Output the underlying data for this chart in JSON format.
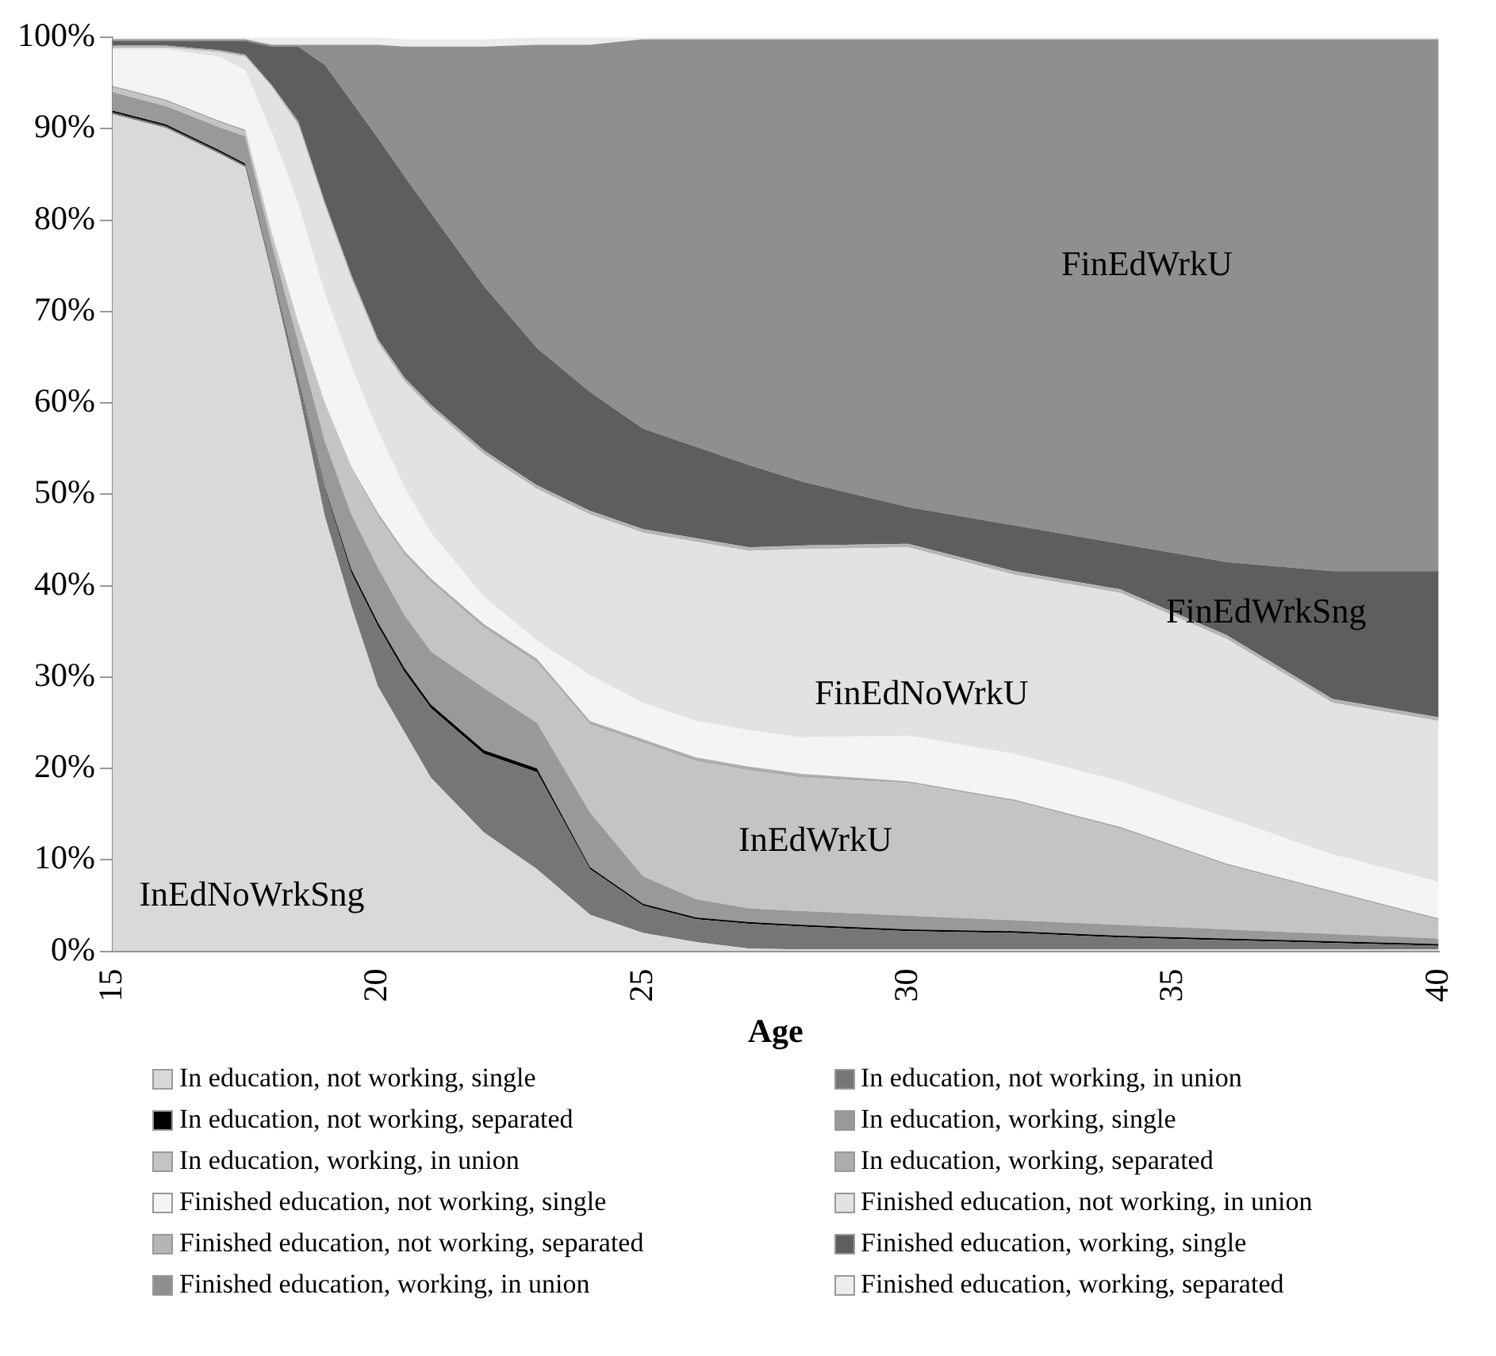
{
  "chart_data": {
    "type": "area",
    "stacked": true,
    "xlabel": "Age",
    "x": [
      15,
      16,
      17,
      17.5,
      18,
      18.5,
      19,
      19.5,
      20,
      20.5,
      21,
      22,
      23,
      24,
      25,
      26,
      27,
      28,
      30,
      32,
      34,
      36,
      38,
      40
    ],
    "xlim": [
      15,
      40
    ],
    "xticks": [
      15,
      20,
      25,
      30,
      35,
      40
    ],
    "ylim": [
      0,
      100
    ],
    "yticks": [
      {
        "value": 0,
        "label": "0%"
      },
      {
        "value": 10,
        "label": "10%"
      },
      {
        "value": 20,
        "label": "20%"
      },
      {
        "value": 30,
        "label": "30%"
      },
      {
        "value": 40,
        "label": "40%"
      },
      {
        "value": 50,
        "label": "50%"
      },
      {
        "value": 60,
        "label": "60%"
      },
      {
        "value": 70,
        "label": "70%"
      },
      {
        "value": 80,
        "label": "80%"
      },
      {
        "value": 90,
        "label": "90%"
      },
      {
        "value": 100,
        "label": "100%"
      }
    ],
    "grid": false,
    "legend": "bottom",
    "series": [
      {
        "name": "In education, not working, single",
        "color": "#d9d9d9",
        "values": [
          91.6,
          90.1,
          87.3,
          85.8,
          74,
          61.4,
          47.6,
          37.8,
          29,
          24,
          19,
          13,
          9,
          4,
          2,
          1,
          0.3,
          0.2,
          0.2,
          0.2,
          0.2,
          0.2,
          0.2,
          0.2
        ]
      },
      {
        "name": "In education, not working, in union",
        "color": "#767676",
        "values": [
          0.2,
          0.2,
          0.2,
          0.2,
          0.2,
          1,
          3,
          3.6,
          6.6,
          6.6,
          7.6,
          8.6,
          10.6,
          5,
          3,
          2.5,
          2.7,
          2.5,
          2,
          1.8,
          1.3,
          1,
          0.7,
          0.4
        ]
      },
      {
        "name": "In education, not working, separated",
        "color": "#000000",
        "values": [
          0.2,
          0.2,
          0.2,
          0.2,
          0.2,
          0.2,
          0.2,
          0.4,
          0.4,
          0.4,
          0.4,
          0.4,
          0.4,
          0.2,
          0.2,
          0.2,
          0.2,
          0.2,
          0.2,
          0.2,
          0.2,
          0.2,
          0.2,
          0.2
        ]
      },
      {
        "name": "In education, working, single",
        "color": "#999999",
        "values": [
          2,
          2,
          2.5,
          3,
          3,
          4,
          5,
          6,
          6,
          5.8,
          5.8,
          6.8,
          5,
          6,
          3,
          2,
          1.5,
          1.5,
          1.5,
          1.2,
          1.2,
          1,
          0.8,
          0.6
        ]
      },
      {
        "name": "In education, working, in union",
        "color": "#c4c4c4",
        "values": [
          0.5,
          0.5,
          0.5,
          0.5,
          1,
          2,
          4,
          5,
          5.6,
          6.6,
          7.6,
          6.6,
          6.6,
          9.6,
          14.6,
          15.1,
          15.1,
          14.6,
          14.5,
          13,
          10.5,
          7,
          4.5,
          2
        ]
      },
      {
        "name": "In education, working, separated",
        "color": "#adadad",
        "values": [
          0.2,
          0.2,
          0.2,
          0.2,
          0.2,
          0.2,
          0.2,
          0.2,
          0.4,
          0.4,
          0.4,
          0.4,
          0.4,
          0.4,
          0.4,
          0.4,
          0.4,
          0.4,
          0.2,
          0.2,
          0.2,
          0.2,
          0.2,
          0.2
        ]
      },
      {
        "name": "Finished education, not working, single",
        "color": "#f4f4f4",
        "values": [
          4,
          5.5,
          7,
          6.5,
          11,
          13,
          12,
          11,
          9,
          7,
          5,
          3,
          2,
          5,
          4,
          4,
          4,
          4,
          5,
          5,
          5,
          5,
          4,
          4
        ]
      },
      {
        "name": "Finished education, not working, in union",
        "color": "#e2e2e2",
        "values": [
          0.2,
          0.2,
          0.5,
          1.5,
          5,
          8.6,
          9.6,
          9.6,
          9.6,
          11.6,
          13.6,
          15.6,
          16.6,
          17.6,
          18.6,
          19.6,
          19.6,
          20.6,
          20.6,
          19.6,
          20.6,
          19.6,
          16.6,
          17.6
        ]
      },
      {
        "name": "Finished education, not working, separated",
        "color": "#b5b5b5",
        "values": [
          0.2,
          0.2,
          0.2,
          0.2,
          0.2,
          0.4,
          0.4,
          0.4,
          0.4,
          0.4,
          0.4,
          0.4,
          0.4,
          0.4,
          0.4,
          0.4,
          0.4,
          0.4,
          0.4,
          0.4,
          0.4,
          0.4,
          0.4,
          0.4
        ]
      },
      {
        "name": "Finished education, working, single",
        "color": "#5e5e5e",
        "values": [
          0.5,
          0.5,
          1,
          1.5,
          4.2,
          8.2,
          15,
          19,
          22,
          22,
          21,
          18,
          15,
          13,
          11,
          10,
          9,
          7,
          4,
          5,
          5,
          8,
          14,
          16
        ]
      },
      {
        "name": "Finished education, working, in union",
        "color": "#8f8f8f",
        "values": [
          0.2,
          0.2,
          0.2,
          0.2,
          0.2,
          0.2,
          2.2,
          6.2,
          10.2,
          14.2,
          18.2,
          26.2,
          33.2,
          38,
          42.6,
          44.6,
          46.6,
          48.4,
          51.2,
          53.2,
          55.2,
          57.2,
          58.2,
          58.2
        ]
      },
      {
        "name": "Finished education, working, separated",
        "color": "#ececec",
        "values": [
          0.2,
          0.2,
          0.2,
          0.2,
          0.8,
          0.8,
          0.8,
          0.8,
          0.8,
          0.8,
          0.8,
          0.8,
          0.8,
          0.8,
          0.2,
          0.2,
          0.2,
          0.2,
          0.2,
          0.2,
          0.2,
          0.2,
          0.2,
          0.2
        ]
      }
    ],
    "annotations": [
      "InEdNoWrkSng",
      "InEdWrkU",
      "FinEdNoWrkU",
      "FinEdWrkSng",
      "FinEdWrkU"
    ]
  }
}
